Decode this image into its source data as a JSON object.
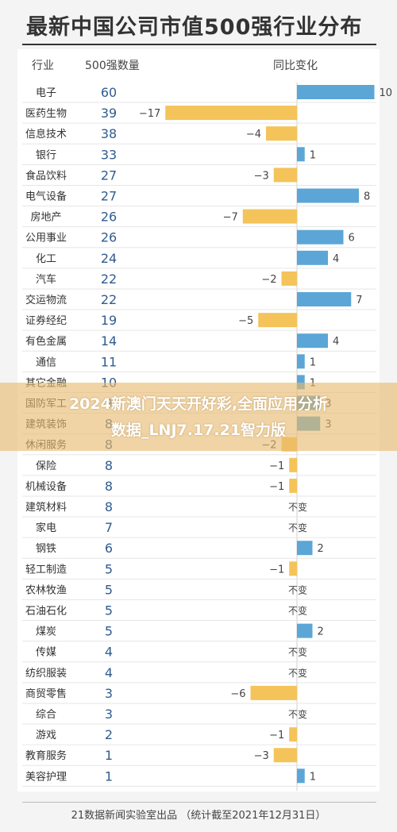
{
  "title": "最新中国公司市值500强行业分布",
  "headers": {
    "industry": "行业",
    "count": "500强数量",
    "change": "同比变化"
  },
  "colors": {
    "positive": "#5ba6d6",
    "negative": "#f4c45a",
    "count_text": "#2f5c8f",
    "row_divider": "#e6e6e6"
  },
  "banner": {
    "line1": "2024新澳门天天开好彩,全面应用分析",
    "line2": "数据_LNJ7.17.21智力版"
  },
  "footer": "21数据新闻实验室出品 （统计截至2021年12月31日）",
  "chart_data": {
    "type": "bar",
    "title": "最新中国公司市值500强行业分布",
    "no_change_label": "不变",
    "categories": [
      "电子",
      "医药生物",
      "信息技术",
      "银行",
      "食品饮料",
      "电气设备",
      "房地产",
      "公用事业",
      "化工",
      "汽车",
      "交运物流",
      "证券经纪",
      "有色金属",
      "通信",
      "其它金融",
      "国防军工",
      "建筑装饰",
      "休闲服务",
      "保险",
      "机械设备",
      "建筑材料",
      "家电",
      "钢铁",
      "轻工制造",
      "农林牧渔",
      "石油石化",
      "煤炭",
      "传媒",
      "纺织服装",
      "商贸零售",
      "综合",
      "游戏",
      "教育服务",
      "美容护理"
    ],
    "counts": [
      60,
      39,
      38,
      33,
      27,
      27,
      26,
      26,
      24,
      22,
      22,
      19,
      14,
      11,
      10,
      9,
      8,
      8,
      8,
      8,
      8,
      7,
      6,
      5,
      5,
      5,
      5,
      4,
      4,
      3,
      3,
      2,
      1,
      1
    ],
    "changes": [
      10,
      -17,
      -4,
      1,
      -3,
      8,
      -7,
      6,
      4,
      -2,
      7,
      -5,
      4,
      1,
      1,
      3,
      3,
      -2,
      -1,
      -1,
      0,
      0,
      2,
      -1,
      0,
      0,
      2,
      0,
      0,
      -6,
      0,
      -1,
      -3,
      1
    ],
    "change_labels": [
      "10",
      "−17",
      "−4",
      "1",
      "−3",
      "8",
      "−7",
      "6",
      "4",
      "−2",
      "7",
      "−5",
      "4",
      "1",
      "1",
      "3",
      "3",
      "−2",
      "−1",
      "−1",
      "不变",
      "不变",
      "2",
      "−1",
      "不变",
      "不变",
      "2",
      "不变",
      "不变",
      "−6",
      "不变",
      "−1",
      "−3",
      "1"
    ]
  }
}
